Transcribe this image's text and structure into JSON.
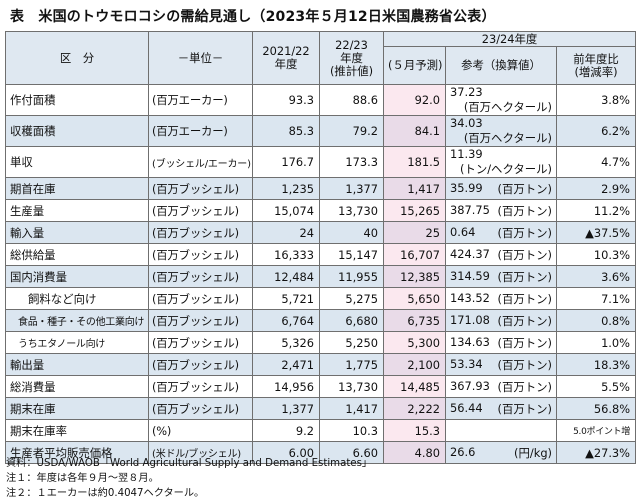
{
  "title": "表　米国のトウモロコシの需給見通し（2023年５月12日米国農務省公表）",
  "headers": {
    "item": "区　分",
    "unit": "－単位－",
    "col2122": "2021/22\n年度",
    "col2223": "22/23\n年度\n(推計値)",
    "col2324_group": "23/24年度",
    "col_may": "(５月予測)",
    "col_ref": "参考（換算値）",
    "col_change": "前年度比\n(増減率)"
  },
  "rows": [
    {
      "item": "作付面積",
      "unit": "(百万エーカー)",
      "y2122": "93.3",
      "y2223": "88.6",
      "may": "92.0",
      "ref_value": "37.23",
      "ref_unit": "(百万ヘクタール)",
      "change": "3.8%"
    },
    {
      "item": "収穫面積",
      "unit": "(百万エーカー)",
      "y2122": "85.3",
      "y2223": "79.2",
      "may": "84.1",
      "ref_value": "34.03",
      "ref_unit": "(百万ヘクタール)",
      "change": "6.2%"
    },
    {
      "item": "単収",
      "unit": "(ブッシェル/エーカー)",
      "y2122": "176.7",
      "y2223": "173.3",
      "may": "181.5",
      "ref_value": "11.39",
      "ref_unit": "(トン/ヘクタール)",
      "change": "4.7%"
    },
    {
      "item": "期首在庫",
      "unit": "(百万ブッシェル)",
      "y2122": "1,235",
      "y2223": "1,377",
      "may": "1,417",
      "ref_value": "35.99",
      "ref_unit": "(百万トン)",
      "change": "2.9%"
    },
    {
      "item": "生産量",
      "unit": "(百万ブッシェル)",
      "y2122": "15,074",
      "y2223": "13,730",
      "may": "15,265",
      "ref_value": "387.75",
      "ref_unit": "(百万トン)",
      "change": "11.2%"
    },
    {
      "item": "輸入量",
      "unit": "(百万ブッシェル)",
      "y2122": "24",
      "y2223": "40",
      "may": "25",
      "ref_value": "0.64",
      "ref_unit": "(百万トン)",
      "change": "▲37.5%"
    },
    {
      "item": "総供給量",
      "unit": "(百万ブッシェル)",
      "y2122": "16,333",
      "y2223": "15,147",
      "may": "16,707",
      "ref_value": "424.37",
      "ref_unit": "(百万トン)",
      "change": "10.3%"
    },
    {
      "item": "国内消費量",
      "unit": "(百万ブッシェル)",
      "y2122": "12,484",
      "y2223": "11,955",
      "may": "12,385",
      "ref_value": "314.59",
      "ref_unit": "(百万トン)",
      "change": "3.6%"
    },
    {
      "item": "飼料など向け",
      "unit": "(百万ブッシェル)",
      "y2122": "5,721",
      "y2223": "5,275",
      "may": "5,650",
      "ref_value": "143.52",
      "ref_unit": "(百万トン)",
      "change": "7.1%"
    },
    {
      "item": "食品・種子・その他工業向け",
      "unit": "(百万ブッシェル)",
      "y2122": "6,764",
      "y2223": "6,680",
      "may": "6,735",
      "ref_value": "171.08",
      "ref_unit": "(百万トン)",
      "change": "0.8%"
    },
    {
      "item": "うちエタノール向け",
      "unit": "(百万ブッシェル)",
      "y2122": "5,326",
      "y2223": "5,250",
      "may": "5,300",
      "ref_value": "134.63",
      "ref_unit": "(百万トン)",
      "change": "1.0%"
    },
    {
      "item": "輸出量",
      "unit": "(百万ブッシェル)",
      "y2122": "2,471",
      "y2223": "1,775",
      "may": "2,100",
      "ref_value": "53.34",
      "ref_unit": "(百万トン)",
      "change": "18.3%"
    },
    {
      "item": "総消費量",
      "unit": "(百万ブッシェル)",
      "y2122": "14,956",
      "y2223": "13,730",
      "may": "14,485",
      "ref_value": "367.93",
      "ref_unit": "(百万トン)",
      "change": "5.5%"
    },
    {
      "item": "期末在庫",
      "unit": "(百万ブッシェル)",
      "y2122": "1,377",
      "y2223": "1,417",
      "may": "2,222",
      "ref_value": "56.44",
      "ref_unit": "(百万トン)",
      "change": "56.8%"
    },
    {
      "item": "期末在庫率",
      "unit": "(%)",
      "y2122": "9.2",
      "y2223": "10.3",
      "may": "15.3",
      "ref_value": "",
      "ref_unit": "",
      "change": "5.0ポイント増"
    },
    {
      "item": "生産者平均販売価格",
      "unit": "(米ドル/ブッシェル)",
      "y2122": "6.00",
      "y2223": "6.60",
      "may": "4.80",
      "ref_value": "26.6",
      "ref_unit": "(円/kg)",
      "change": "▲27.3%"
    }
  ],
  "notes": [
    "資料：USDA/WAOB「World Agricultural Supply and Demand Estimates」",
    "注１：年度は各年９月～翌８月。",
    "注２：１エーカーは約0.4047ヘクタール。"
  ]
}
